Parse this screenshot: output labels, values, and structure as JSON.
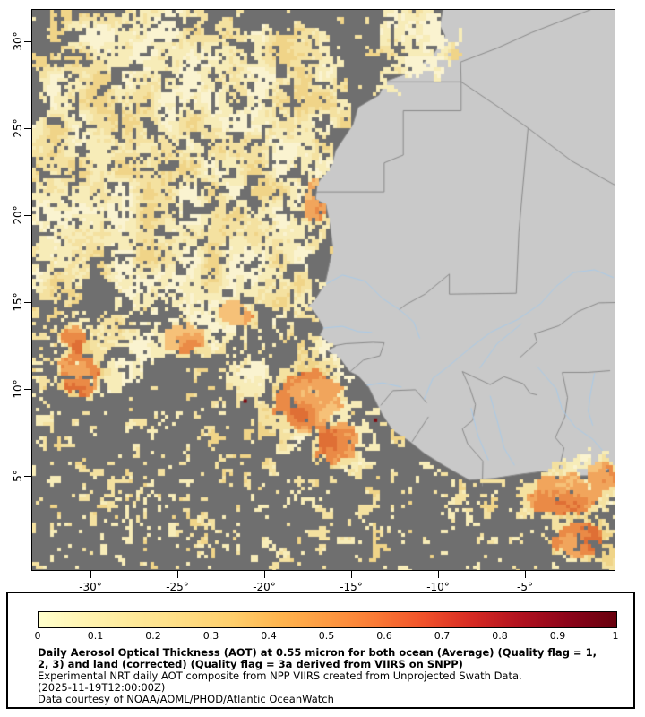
{
  "page": {
    "background": "#ffffff"
  },
  "map": {
    "y_tick_labels": [
      "30°",
      "25°",
      "20°",
      "15°",
      "10°",
      "5°"
    ],
    "x_tick_labels": [
      "-30°",
      "-25°",
      "-20°",
      "-15°",
      "-10°",
      "-5°"
    ],
    "colors": {
      "ocean_no_data": "#6f6f6f",
      "land": "#c9c9c9",
      "country_border": "#8a8a8a",
      "river": "#a9c9e9",
      "frame": "#000000",
      "aot_palette_light": [
        "#faf3d0",
        "#f7ecb8",
        "#f4e1a0",
        "#f0d488"
      ],
      "aot_palette_orange": [
        "#f6c178",
        "#f1a55c",
        "#ea8a46",
        "#df6f35"
      ],
      "aot_extreme": "#7f0d12"
    }
  },
  "legend": {
    "tick_labels": [
      "0",
      "0.1",
      "0.2",
      "0.3",
      "0.4",
      "0.5",
      "0.6",
      "0.7",
      "0.8",
      "0.9",
      "1"
    ],
    "scale_min": "0",
    "scale_max": "1",
    "gradient_stops": [
      "#ffffcc",
      "#fff3b0",
      "#fee999",
      "#fedd84",
      "#fecf6d",
      "#feb54f",
      "#fd9a42",
      "#fa7a35",
      "#f0512a",
      "#d62a23",
      "#b1121f",
      "#8c041a",
      "#67000d"
    ],
    "caption": {
      "bold_1": "Daily Aerosol Optical Thickness (AOT) at 0.55 micron for both ocean (Average) (Quality flag = 1,",
      "bold_2": "2, 3) and land (corrected) (Quality flag = 3a derived from VIIRS on SNPP)",
      "normal_1": "Experimental NRT daily AOT composite from NPP VIIRS created from Unprojected Swath Data.",
      "normal_2": "(2025-11-19T12:00:00Z)",
      "normal_3": "Data courtesy of NOAA/AOML/PHOD/Atlantic OceanWatch"
    }
  }
}
